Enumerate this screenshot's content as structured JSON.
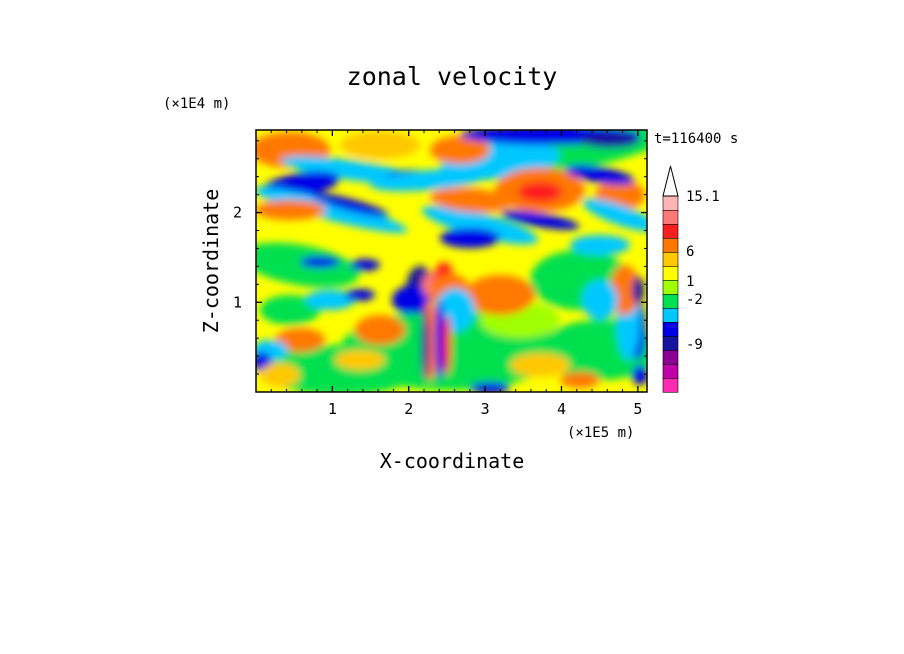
{
  "chart_data": {
    "type": "heatmap",
    "title": "zonal velocity",
    "xlabel": "X-coordinate",
    "ylabel": "Z-coordinate",
    "x_unit": "(×1E5 m)",
    "y_unit": "(×1E4 m)",
    "time_label": "t=116400 s",
    "xlim": [
      0,
      5.12
    ],
    "ylim": [
      0,
      2.92
    ],
    "x_ticks": [
      "1",
      "2",
      "3",
      "4",
      "5"
    ],
    "x_tick_values": [
      1,
      2,
      3,
      4,
      5
    ],
    "y_ticks": [
      "1",
      "2"
    ],
    "y_tick_values": [
      1,
      2
    ],
    "colorbar": {
      "labels": [
        "15.1",
        "6",
        "1",
        "-2",
        "-9"
      ],
      "label_values": [
        15.1,
        6,
        1,
        -2,
        -9
      ],
      "bins": [
        {
          "color": "#ff2ab0"
        },
        {
          "color": "#c000a8"
        },
        {
          "color": "#8a0096"
        },
        {
          "color": "#1414a0"
        },
        {
          "color": "#0000e6"
        },
        {
          "color": "#00c8ff"
        },
        {
          "color": "#00e050"
        },
        {
          "color": "#a0ff00"
        },
        {
          "color": "#ffff00"
        },
        {
          "color": "#ffc800"
        },
        {
          "color": "#ff7800"
        },
        {
          "color": "#ff1e1e"
        },
        {
          "color": "#ff7878"
        },
        {
          "color": "#ffb4b4"
        },
        {
          "color": "#ffffff"
        }
      ]
    }
  }
}
